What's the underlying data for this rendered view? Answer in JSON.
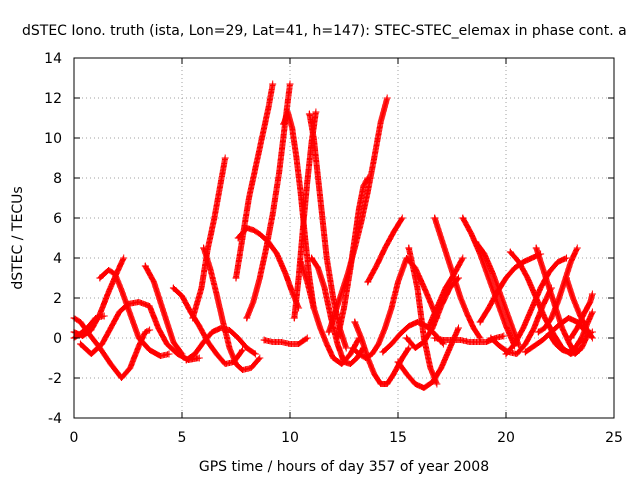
{
  "chart_data": {
    "type": "scatter",
    "title": "dSTEC Iono. truth (ista, Lon=29, Lat=41, h=147): STEC-STEC_elemax in phase cont. a",
    "xlabel": "GPS time / hours of day 357 of year 2008",
    "ylabel": "dSTEC  / TECUs",
    "xlim": [
      0,
      25
    ],
    "ylim": [
      -4,
      14
    ],
    "xticks": [
      0,
      5,
      10,
      15,
      20,
      25
    ],
    "yticks": [
      -4,
      -2,
      0,
      2,
      4,
      6,
      8,
      10,
      12,
      14
    ],
    "grid": true,
    "marker": "plus",
    "color": "#ff0000",
    "series": [
      {
        "x": [
          0.0,
          0.3,
          0.7,
          1.2,
          1.7,
          2.2,
          2.6,
          3.0,
          3.3,
          3.5
        ],
        "y": [
          1.0,
          0.8,
          0.2,
          -0.5,
          -1.3,
          -2.0,
          -1.5,
          -0.4,
          0.3,
          0.4
        ]
      },
      {
        "x": [
          0.0,
          0.4,
          0.8,
          1.2,
          1.6,
          2.0,
          2.3
        ],
        "y": [
          0.3,
          0.1,
          0.4,
          1.2,
          2.3,
          3.3,
          4.0
        ]
      },
      {
        "x": [
          0.0,
          0.4,
          0.7,
          1.0,
          1.4
        ],
        "y": [
          0.0,
          0.3,
          0.6,
          1.0,
          1.1
        ]
      },
      {
        "x": [
          0.3,
          0.8,
          1.3,
          1.7,
          2.1,
          2.5,
          3.0,
          3.5,
          3.9,
          4.3,
          4.8,
          5.3,
          5.8
        ],
        "y": [
          -0.3,
          -0.8,
          -0.3,
          0.5,
          1.3,
          1.7,
          1.8,
          1.6,
          0.5,
          -0.3,
          -0.8,
          -1.1,
          -1.0
        ]
      },
      {
        "x": [
          1.2,
          1.6,
          1.9,
          2.2,
          2.6,
          3.0,
          3.5,
          4.0,
          4.4
        ],
        "y": [
          3.0,
          3.4,
          3.2,
          2.4,
          1.2,
          0.0,
          -0.6,
          -0.9,
          -0.8
        ]
      },
      {
        "x": [
          3.3,
          3.7,
          4.0,
          4.3,
          4.6,
          5.0
        ],
        "y": [
          3.6,
          2.8,
          1.8,
          0.8,
          -0.2,
          -0.8
        ]
      },
      {
        "x": [
          4.6,
          5.0,
          5.4,
          5.8,
          6.2,
          6.6,
          7.0,
          7.4,
          7.8
        ],
        "y": [
          2.5,
          2.1,
          1.3,
          0.6,
          -0.2,
          -0.8,
          -1.3,
          -1.2,
          -0.6
        ]
      },
      {
        "x": [
          5.5,
          5.9,
          6.2,
          6.5,
          6.8,
          7.0
        ],
        "y": [
          1.0,
          2.5,
          4.5,
          6.0,
          7.8,
          9.0
        ]
      },
      {
        "x": [
          5.2,
          5.6,
          6.0,
          6.4,
          6.8,
          7.2,
          7.6,
          8.0,
          8.4
        ],
        "y": [
          -1.1,
          -0.8,
          -0.2,
          0.3,
          0.5,
          0.4,
          0.0,
          -0.5,
          -0.8
        ]
      },
      {
        "x": [
          6.0,
          6.3,
          6.6,
          6.9,
          7.2,
          7.5,
          7.8,
          8.2,
          8.6
        ],
        "y": [
          4.5,
          3.5,
          2.2,
          0.8,
          -0.5,
          -1.3,
          -1.6,
          -1.5,
          -1.0
        ]
      },
      {
        "x": [
          7.5,
          7.8,
          8.1,
          8.4,
          8.7,
          9.0,
          9.2
        ],
        "y": [
          3.0,
          5.0,
          7.0,
          8.5,
          10.0,
          11.5,
          12.7
        ]
      },
      {
        "x": [
          7.6,
          8.0,
          8.3,
          8.6,
          9.0,
          9.4,
          9.8,
          10.1,
          10.4
        ],
        "y": [
          5.0,
          5.5,
          5.4,
          5.2,
          4.8,
          4.2,
          3.2,
          2.3,
          1.5
        ]
      },
      {
        "x": [
          8.0,
          8.3,
          8.6,
          8.9,
          9.2,
          9.5,
          9.8,
          10.0
        ],
        "y": [
          1.0,
          1.8,
          3.0,
          4.5,
          6.2,
          8.3,
          11.0,
          12.7
        ]
      },
      {
        "x": [
          8.8,
          9.2,
          9.6,
          10.0,
          10.4,
          10.8
        ],
        "y": [
          -0.1,
          -0.2,
          -0.2,
          -0.3,
          -0.3,
          0.0
        ]
      },
      {
        "x": [
          9.7,
          9.9,
          10.1,
          10.3,
          10.5,
          10.7,
          10.9,
          11.1
        ],
        "y": [
          10.7,
          11.3,
          10.5,
          9.0,
          7.2,
          5.0,
          3.0,
          1.5
        ]
      },
      {
        "x": [
          10.2,
          10.4,
          10.6,
          10.8,
          11.0,
          11.2
        ],
        "y": [
          1.0,
          3.0,
          5.5,
          7.8,
          9.8,
          11.3
        ]
      },
      {
        "x": [
          10.9,
          11.1,
          11.3,
          11.5,
          11.7,
          12.0,
          12.3,
          12.6
        ],
        "y": [
          11.2,
          10.0,
          8.0,
          6.0,
          4.0,
          2.0,
          0.5,
          -0.5
        ]
      },
      {
        "x": [
          10.5,
          10.8,
          11.1,
          11.4,
          11.7,
          12.0,
          12.4,
          12.8,
          13.2
        ],
        "y": [
          3.8,
          2.8,
          1.5,
          0.5,
          -0.3,
          -1.0,
          -1.3,
          -0.8,
          0.0
        ]
      },
      {
        "x": [
          11.0,
          11.3,
          11.6,
          11.9,
          12.2,
          12.5,
          12.8,
          13.1,
          13.4
        ],
        "y": [
          4.0,
          3.5,
          2.5,
          1.0,
          -0.3,
          -1.2,
          -1.3,
          -1.0,
          -0.5
        ]
      },
      {
        "x": [
          11.8,
          12.1,
          12.4,
          12.7,
          13.0,
          13.3,
          13.6,
          13.9,
          14.2,
          14.5
        ],
        "y": [
          0.3,
          1.3,
          2.3,
          3.3,
          4.5,
          5.8,
          7.3,
          9.0,
          10.8,
          12.0
        ]
      },
      {
        "x": [
          12.2,
          12.5,
          12.8,
          13.0,
          13.2,
          13.4,
          13.6
        ],
        "y": [
          0.0,
          1.5,
          3.5,
          5.0,
          6.5,
          7.6,
          8.0
        ]
      },
      {
        "x": [
          13.0,
          13.3,
          13.6,
          13.9,
          14.2,
          14.5,
          14.8,
          15.2,
          15.5
        ],
        "y": [
          0.8,
          0.0,
          -1.0,
          -1.8,
          -2.3,
          -2.3,
          -1.8,
          -1.0,
          -0.5
        ]
      },
      {
        "x": [
          12.9,
          13.2,
          13.5,
          13.8,
          14.1,
          14.4,
          14.7,
          15.0,
          15.4,
          15.8,
          16.3,
          16.8
        ],
        "y": [
          -0.5,
          -0.8,
          -1.0,
          -0.8,
          -0.3,
          0.5,
          1.5,
          2.8,
          4.0,
          3.5,
          2.3,
          1.0
        ]
      },
      {
        "x": [
          13.6,
          14.0,
          14.4,
          14.8,
          15.2
        ],
        "y": [
          2.8,
          3.6,
          4.5,
          5.3,
          6.0
        ]
      },
      {
        "x": [
          14.3,
          14.7,
          15.1,
          15.5,
          15.9,
          16.3,
          16.7,
          17.1
        ],
        "y": [
          -0.7,
          -0.3,
          0.2,
          0.6,
          0.8,
          0.6,
          0.2,
          -0.3
        ]
      },
      {
        "x": [
          15.4,
          15.8,
          16.2,
          16.6,
          17.0,
          17.4,
          17.8
        ],
        "y": [
          0.0,
          -0.5,
          -0.2,
          0.5,
          1.6,
          2.5,
          3.0
        ]
      },
      {
        "x": [
          15.5,
          15.9,
          16.2,
          16.5,
          16.8
        ],
        "y": [
          4.5,
          2.5,
          0.0,
          -1.5,
          -2.3
        ]
      },
      {
        "x": [
          15.0,
          15.4,
          15.8,
          16.2,
          16.6,
          17.0,
          17.4,
          17.8
        ],
        "y": [
          -1.2,
          -1.8,
          -2.3,
          -2.5,
          -2.2,
          -1.5,
          -0.5,
          0.5
        ]
      },
      {
        "x": [
          16.4,
          16.8,
          17.2,
          17.6,
          18.0
        ],
        "y": [
          0.5,
          1.5,
          2.5,
          3.2,
          4.0
        ]
      },
      {
        "x": [
          16.7,
          17.0,
          17.3,
          17.6,
          17.9,
          18.2,
          18.5,
          18.8
        ],
        "y": [
          6.0,
          5.0,
          4.0,
          3.0,
          2.0,
          1.2,
          0.5,
          0.0
        ]
      },
      {
        "x": [
          16.7,
          17.1,
          17.5,
          17.9,
          18.3,
          18.7,
          19.1,
          19.5,
          19.9
        ],
        "y": [
          0.0,
          -0.1,
          -0.1,
          -0.1,
          -0.2,
          -0.2,
          -0.2,
          0.0,
          0.1
        ]
      },
      {
        "x": [
          18.0,
          18.4,
          18.8,
          19.2,
          19.6,
          20.0,
          20.4
        ],
        "y": [
          6.0,
          5.2,
          4.2,
          3.0,
          1.8,
          0.6,
          -0.4
        ]
      },
      {
        "x": [
          18.6,
          19.0,
          19.4,
          19.8,
          20.2,
          20.6
        ],
        "y": [
          4.8,
          4.2,
          3.2,
          2.0,
          0.8,
          -0.4
        ]
      },
      {
        "x": [
          18.8,
          19.2,
          19.6,
          20.0,
          20.4,
          20.8,
          21.2,
          21.6
        ],
        "y": [
          0.8,
          1.5,
          2.3,
          3.0,
          3.5,
          3.8,
          4.0,
          4.2
        ]
      },
      {
        "x": [
          19.3,
          19.7,
          20.1,
          20.5,
          20.9,
          21.3,
          21.7,
          22.1
        ],
        "y": [
          0.0,
          -0.4,
          -0.7,
          -0.8,
          -0.3,
          0.5,
          1.6,
          2.5
        ]
      },
      {
        "x": [
          20.0,
          20.4,
          20.8,
          21.2,
          21.6,
          22.0,
          22.4,
          22.8
        ],
        "y": [
          -0.8,
          -0.3,
          0.5,
          1.5,
          2.5,
          3.3,
          3.8,
          4.0
        ]
      },
      {
        "x": [
          20.2,
          20.6,
          21.0,
          21.4,
          21.8,
          22.2,
          22.6,
          23.0,
          23.4
        ],
        "y": [
          4.3,
          3.8,
          3.0,
          2.0,
          1.0,
          0.2,
          -0.5,
          -0.8,
          -0.6
        ]
      },
      {
        "x": [
          20.9,
          21.3,
          21.7,
          22.1,
          22.5,
          22.9,
          23.3,
          23.7
        ],
        "y": [
          -0.7,
          -0.4,
          -0.1,
          0.3,
          0.7,
          1.0,
          0.8,
          0.3
        ]
      },
      {
        "x": [
          21.4,
          21.7,
          22.0,
          22.3,
          22.6,
          22.9,
          23.2,
          23.5,
          23.8,
          24.0
        ],
        "y": [
          4.5,
          3.5,
          2.5,
          1.5,
          0.5,
          -0.2,
          -0.8,
          -0.5,
          0.2,
          0.3
        ]
      },
      {
        "x": [
          21.5,
          21.8,
          22.1,
          22.4,
          22.7,
          23.0,
          23.3
        ],
        "y": [
          0.3,
          0.5,
          1.0,
          1.8,
          2.8,
          3.8,
          4.5
        ]
      },
      {
        "x": [
          22.0,
          22.3,
          22.6,
          22.9,
          23.2,
          23.5,
          23.8,
          24.0
        ],
        "y": [
          0.2,
          -0.3,
          -0.6,
          -0.7,
          -0.5,
          0.0,
          0.8,
          1.3
        ]
      },
      {
        "x": [
          22.8,
          23.1,
          23.4,
          23.7,
          24.0
        ],
        "y": [
          3.0,
          2.0,
          1.2,
          0.5,
          0.0
        ]
      },
      {
        "x": [
          23.0,
          23.3,
          23.6,
          23.9,
          24.0
        ],
        "y": [
          0.0,
          0.5,
          1.2,
          1.8,
          2.2
        ]
      }
    ]
  }
}
